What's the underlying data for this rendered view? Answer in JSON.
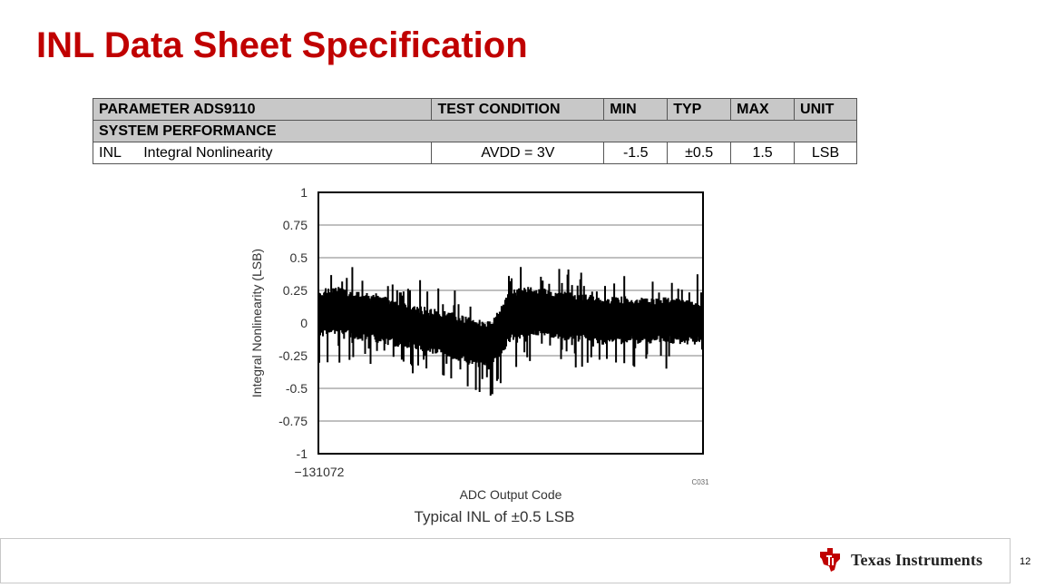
{
  "slide": {
    "title": "INL Data Sheet Specification",
    "page_number": "12"
  },
  "table": {
    "headers": [
      "PARAMETER ADS9110",
      "TEST CONDITION",
      "MIN",
      "TYP",
      "MAX",
      "UNIT"
    ],
    "section": "SYSTEM PERFORMANCE",
    "row": {
      "symbol": "INL",
      "name": "Integral Nonlinearity",
      "condition": "AVDD = 3V",
      "min": "-1.5",
      "typ": "±0.5",
      "max": "1.5",
      "unit": "LSB"
    }
  },
  "chart_data": {
    "type": "line",
    "title": "",
    "xlabel": "ADC Output Code",
    "ylabel": "Integral Nonlinearity (LSB)",
    "ylim": [
      -1,
      1
    ],
    "yticks": [
      "1",
      "0.75",
      "0.5",
      "0.25",
      "0",
      "-0.25",
      "-0.5",
      "-0.75",
      "-1"
    ],
    "xtick_left": "−131072",
    "figure_id": "C031",
    "caption": "Typical INL of ±0.5 LSB",
    "grid": true,
    "series_color": "#000000",
    "x": [
      0.0,
      0.05,
      0.1,
      0.15,
      0.2,
      0.25,
      0.3,
      0.35,
      0.4,
      0.45,
      0.5,
      0.55,
      0.6,
      0.65,
      0.7,
      0.75,
      0.8,
      0.85,
      0.9,
      0.95,
      1.0
    ],
    "series": [
      {
        "values": [
          0.2,
          0.22,
          0.18,
          0.17,
          0.12,
          0.08,
          0.05,
          0.02,
          -0.02,
          -0.05,
          0.2,
          0.23,
          0.2,
          0.18,
          0.16,
          0.14,
          0.15,
          0.14,
          0.14,
          0.12,
          0.12
        ]
      },
      {
        "values": [
          -0.05,
          -0.02,
          -0.07,
          -0.09,
          -0.12,
          -0.15,
          -0.18,
          -0.22,
          -0.27,
          -0.3,
          -0.08,
          -0.04,
          -0.05,
          -0.08,
          -0.09,
          -0.11,
          -0.1,
          -0.1,
          -0.09,
          -0.11,
          -0.1
        ]
      }
    ]
  },
  "brand": {
    "logo_text": "Texas Instruments",
    "logo_color": "#c00000",
    "title_color": "#c00000"
  }
}
